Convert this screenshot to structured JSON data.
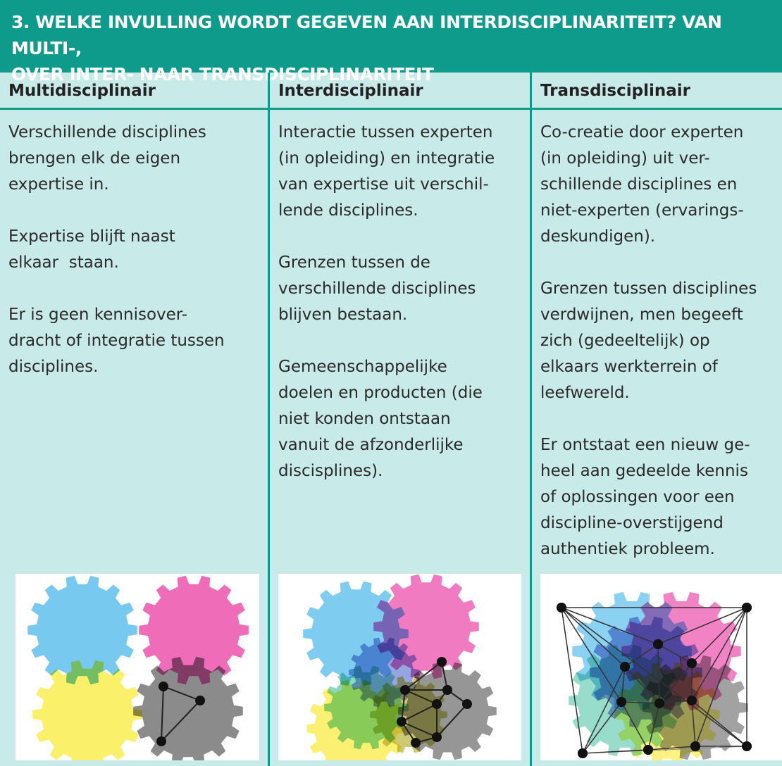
{
  "title": {
    "lines": [
      "3. WELKE INVULLING WORDT GEGEVEN AAN INTERDISCIPLINARITEIT? VAN MULTI-,",
      "OVER INTER- NAAR TRANSDISCIPLINARITEIT"
    ]
  },
  "columns": [
    {
      "header": "Multidisciplinair",
      "paragraphs": [
        [
          "Verschillende disciplines",
          "brengen elk de eigen",
          "expertise in."
        ],
        [
          "Expertise blijft naast",
          "elkaar  staan."
        ],
        [
          "Er is geen kennisover-",
          "dracht of integratie tussen",
          "disciplines."
        ]
      ]
    },
    {
      "header": "Interdisciplinair",
      "paragraphs": [
        [
          "Interactie tussen experten",
          "(in opleiding) en integratie",
          "van expertise uit verschil-",
          "lende disciplines."
        ],
        [
          "Grenzen tussen de",
          "verschillende disciplines",
          "blijven bestaan."
        ],
        [
          "Gemeenschappelijke",
          "doelen en producten (die",
          "niet konden ontstaan",
          "vanuit de afzonderlijke",
          "discisplines)."
        ]
      ]
    },
    {
      "header": "Transdisciplinair",
      "paragraphs": [
        [
          "Co-creatie door experten",
          "(in opleiding) uit ver-",
          "schillende disciplines en",
          "niet-experten (ervarings-",
          "deskundigen)."
        ],
        [
          "Grenzen tussen disciplines",
          "verdwijnen, men begeeft",
          "zich (gedeeltelijk) op",
          "elkaars werkterrein of",
          "leefwereld."
        ],
        [
          "Er ontstaat een nieuw ge-",
          "heel aan gedeelde kennis",
          "of oplossingen voor een",
          "discipline-overstijgend",
          "authentiek probleem."
        ]
      ]
    }
  ]
}
